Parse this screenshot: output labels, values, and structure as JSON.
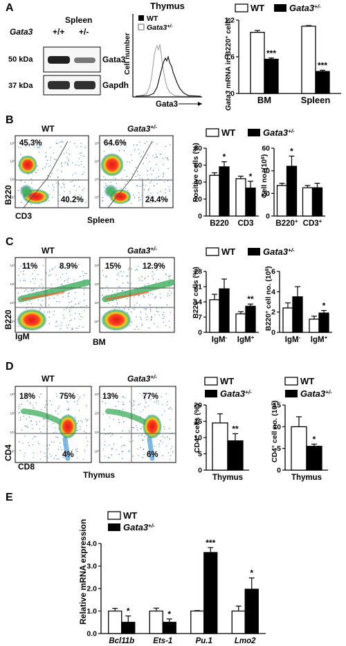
{
  "colors": {
    "wt": "#ffffff",
    "het": "#000000",
    "axis": "#000000",
    "dot_high": "#d62020",
    "dot_mid": "#2fa84f",
    "dot_low": "#2a55c8"
  },
  "panels": {
    "A": {
      "letter": "A",
      "western": {
        "tissue": "Spleen",
        "gene_label": "Gata3",
        "lane_wt": "+/+",
        "lane_het": "+/-",
        "rows": [
          {
            "kda": "50 kDa",
            "protein": "Gata3"
          },
          {
            "kda": "37 kDa",
            "protein": "Gapdh"
          }
        ]
      },
      "histogram": {
        "title": "Thymus",
        "ylabel": "Cell number",
        "xlabel": "Gata3",
        "legend": [
          {
            "label": "WT",
            "swatch": "black"
          },
          {
            "label": "Gata3+/-",
            "swatch": "gray"
          }
        ]
      }
    },
    "B": {
      "letter": "B",
      "tissue": "Spleen",
      "plot_wt": "WT",
      "plot_het": "Gata3+/-",
      "yaxis": "B220",
      "xaxis": "CD3",
      "tick_labels": [
        "10³",
        "10²",
        "10¹",
        "10⁰"
      ],
      "wt_pcts": [
        "45.3%",
        "40.2%"
      ],
      "het_pcts": [
        "64.6%",
        "24.4%"
      ]
    },
    "C": {
      "letter": "C",
      "tissue": "BM",
      "plot_wt": "WT",
      "plot_het": "Gata3+/-",
      "yaxis": "B220",
      "xaxis": "IgM",
      "wt_pcts": [
        "11%",
        "8.9%"
      ],
      "het_pcts": [
        "15%",
        "12.9%"
      ]
    },
    "D": {
      "letter": "D",
      "tissue": "Thymus",
      "plot_wt": "WT",
      "plot_het": "Gata3+/-",
      "yaxis": "CD4",
      "xaxis": "CD8",
      "wt_pcts": [
        "18%",
        "75%",
        "4%"
      ],
      "het_pcts": [
        "13%",
        "77%",
        "6%"
      ]
    },
    "E": {
      "letter": "E"
    }
  },
  "chart_data": [
    {
      "id": "A_mrna",
      "type": "bar",
      "ylabel": "Gata3 mRNA in B220+ cells",
      "categories": [
        "BM",
        "Spleen"
      ],
      "ylim": [
        0,
        1.2
      ],
      "yticks": [
        0,
        0.6,
        1.2
      ],
      "series": [
        {
          "name": "WT",
          "values": [
            1.0,
            1.1
          ],
          "errors": [
            0.03,
            0.01
          ]
        },
        {
          "name": "Gata3+/-",
          "values": [
            0.56,
            0.36
          ],
          "errors": [
            0.02,
            0.02
          ]
        }
      ],
      "significance": [
        "***",
        "***"
      ]
    },
    {
      "id": "B_pct",
      "type": "bar",
      "ylabel": "Positive cells (%)",
      "categories": [
        "B220",
        "CD3"
      ],
      "ylim": [
        0,
        80
      ],
      "yticks": [
        0,
        20,
        40,
        60,
        80
      ],
      "series": [
        {
          "name": "WT",
          "values": [
            48,
            44
          ],
          "errors": [
            3,
            3
          ]
        },
        {
          "name": "Gata3+/-",
          "values": [
            58,
            33
          ],
          "errors": [
            6,
            8
          ]
        }
      ],
      "significance": [
        "*",
        "*"
      ]
    },
    {
      "id": "B_no",
      "type": "bar",
      "ylabel": "Cell no. (10⁶)",
      "categories": [
        "B220+",
        "CD3+"
      ],
      "ylim": [
        0,
        60
      ],
      "yticks": [
        0,
        20,
        40,
        60
      ],
      "series": [
        {
          "name": "WT",
          "values": [
            27,
            25
          ],
          "errors": [
            2,
            2
          ]
        },
        {
          "name": "Gata3+/-",
          "values": [
            44,
            25
          ],
          "errors": [
            9,
            4
          ]
        }
      ],
      "significance": [
        "*",
        ""
      ]
    },
    {
      "id": "C_pct",
      "type": "bar",
      "ylabel": "B220+ cells (%)",
      "categories": [
        "IgM-",
        "IgM+"
      ],
      "ylim": [
        0,
        28
      ],
      "yticks": [
        0,
        7,
        14,
        21,
        28
      ],
      "series": [
        {
          "name": "WT",
          "values": [
            15,
            8.5
          ],
          "errors": [
            2.5,
            1
          ]
        },
        {
          "name": "Gata3+/-",
          "values": [
            20,
            12
          ],
          "errors": [
            4.5,
            1
          ]
        }
      ],
      "significance": [
        "",
        "**"
      ]
    },
    {
      "id": "C_no",
      "type": "bar",
      "ylabel": "B220+ cell no. (10⁶)",
      "categories": [
        "IgM-",
        "IgM+"
      ],
      "ylim": [
        0,
        6
      ],
      "yticks": [
        0,
        2,
        4,
        6
      ],
      "series": [
        {
          "name": "WT",
          "values": [
            2.4,
            1.3
          ],
          "errors": [
            0.5,
            0.3
          ]
        },
        {
          "name": "Gata3+/-",
          "values": [
            3.5,
            1.9
          ],
          "errors": [
            1.0,
            0.25
          ]
        }
      ],
      "significance": [
        "",
        "*"
      ]
    },
    {
      "id": "D_pct",
      "type": "bar",
      "ylabel": "CD4+ cells (%)",
      "categories": [
        "Thymus"
      ],
      "ylim": [
        0,
        20
      ],
      "yticks": [
        0,
        5,
        10,
        15,
        20
      ],
      "series": [
        {
          "name": "WT",
          "values": [
            14.5
          ],
          "errors": [
            2.8
          ]
        },
        {
          "name": "Gata3+/-",
          "values": [
            9
          ],
          "errors": [
            2.2
          ]
        }
      ],
      "significance": [
        "**"
      ]
    },
    {
      "id": "D_no",
      "type": "bar",
      "ylabel": "CD4+ cell no. (10⁶)",
      "categories": [
        "Thymus"
      ],
      "ylim": [
        0,
        15
      ],
      "yticks": [
        0,
        5,
        10,
        15
      ],
      "series": [
        {
          "name": "WT",
          "values": [
            10
          ],
          "errors": [
            2.3
          ]
        },
        {
          "name": "Gata3+/-",
          "values": [
            5.5
          ],
          "errors": [
            0.5
          ]
        }
      ],
      "significance": [
        "*"
      ]
    },
    {
      "id": "E_expr",
      "type": "bar",
      "ylabel": "Relative mRNA expression",
      "categories": [
        "Bcl11b",
        "Ets-1",
        "Pu.1",
        "Lmo2"
      ],
      "ylim": [
        0,
        4.0
      ],
      "yticks": [
        0.0,
        1.0,
        2.0,
        3.0,
        4.0
      ],
      "ytick_labels": [
        "0.0",
        "1.0",
        "2.0",
        "3.0",
        "4.0"
      ],
      "series": [
        {
          "name": "WT",
          "values": [
            1.0,
            1.0,
            1.0,
            1.0
          ],
          "errors": [
            0.12,
            0.13,
            0.02,
            0.22
          ]
        },
        {
          "name": "Gata3+/-",
          "values": [
            0.5,
            0.5,
            3.6,
            1.97
          ],
          "errors": [
            0.28,
            0.15,
            0.22,
            0.5
          ]
        }
      ],
      "significance": [
        "*",
        "*",
        "***",
        "*"
      ]
    }
  ]
}
